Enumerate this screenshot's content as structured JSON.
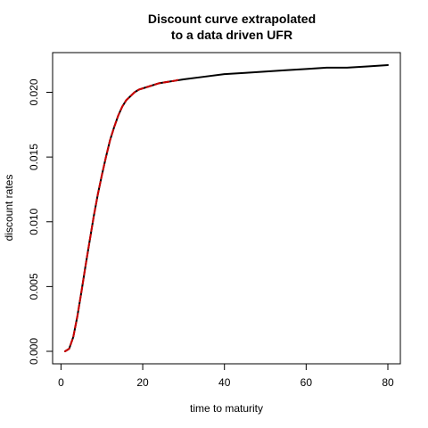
{
  "chart_data": {
    "type": "line",
    "title": [
      "Discount curve extrapolated",
      "to a data driven UFR"
    ],
    "xlabel": "time to maturity",
    "ylabel": "discount rates",
    "xlim": [
      1,
      80
    ],
    "ylim": [
      0.0,
      0.0221
    ],
    "x_ticks": [
      0,
      20,
      40,
      60,
      80
    ],
    "x_tick_labels": [
      "0",
      "20",
      "40",
      "60",
      "80"
    ],
    "y_ticks": [
      0.0,
      0.005,
      0.01,
      0.015,
      0.02
    ],
    "y_tick_labels": [
      "0.000",
      "0.005",
      "0.010",
      "0.015",
      "0.020"
    ],
    "grid": false,
    "legend": "none",
    "series": [
      {
        "color": "#000000",
        "style": "solid",
        "x": [
          1,
          2,
          3,
          4,
          5,
          6,
          7,
          8,
          9,
          10,
          11,
          12,
          13,
          14,
          15,
          16,
          17,
          18,
          19,
          20,
          22,
          24,
          26,
          28,
          30,
          35,
          40,
          45,
          50,
          55,
          60,
          65,
          70,
          75,
          80
        ],
        "y": [
          0.0,
          0.0002,
          0.0011,
          0.0027,
          0.0046,
          0.0066,
          0.0085,
          0.0104,
          0.0121,
          0.0136,
          0.015,
          0.0163,
          0.0173,
          0.0182,
          0.0189,
          0.0194,
          0.0197,
          0.02,
          0.0202,
          0.0203,
          0.0205,
          0.0207,
          0.0208,
          0.0209,
          0.021,
          0.0212,
          0.0214,
          0.0215,
          0.0216,
          0.0217,
          0.0218,
          0.0219,
          0.0219,
          0.022,
          0.0221
        ]
      },
      {
        "color": "#cc0000",
        "style": "dashed",
        "x": [
          1,
          2,
          3,
          4,
          5,
          6,
          7,
          8,
          9,
          10,
          11,
          12,
          13,
          14,
          15,
          16,
          17,
          18,
          19,
          20,
          22,
          24,
          26,
          28,
          29
        ],
        "y": [
          0.0,
          0.0002,
          0.0011,
          0.0027,
          0.0046,
          0.0066,
          0.0085,
          0.0104,
          0.0121,
          0.0136,
          0.015,
          0.0163,
          0.0173,
          0.0182,
          0.0189,
          0.0194,
          0.0197,
          0.02,
          0.0202,
          0.0203,
          0.0205,
          0.0207,
          0.0208,
          0.0209,
          0.021
        ]
      }
    ]
  }
}
